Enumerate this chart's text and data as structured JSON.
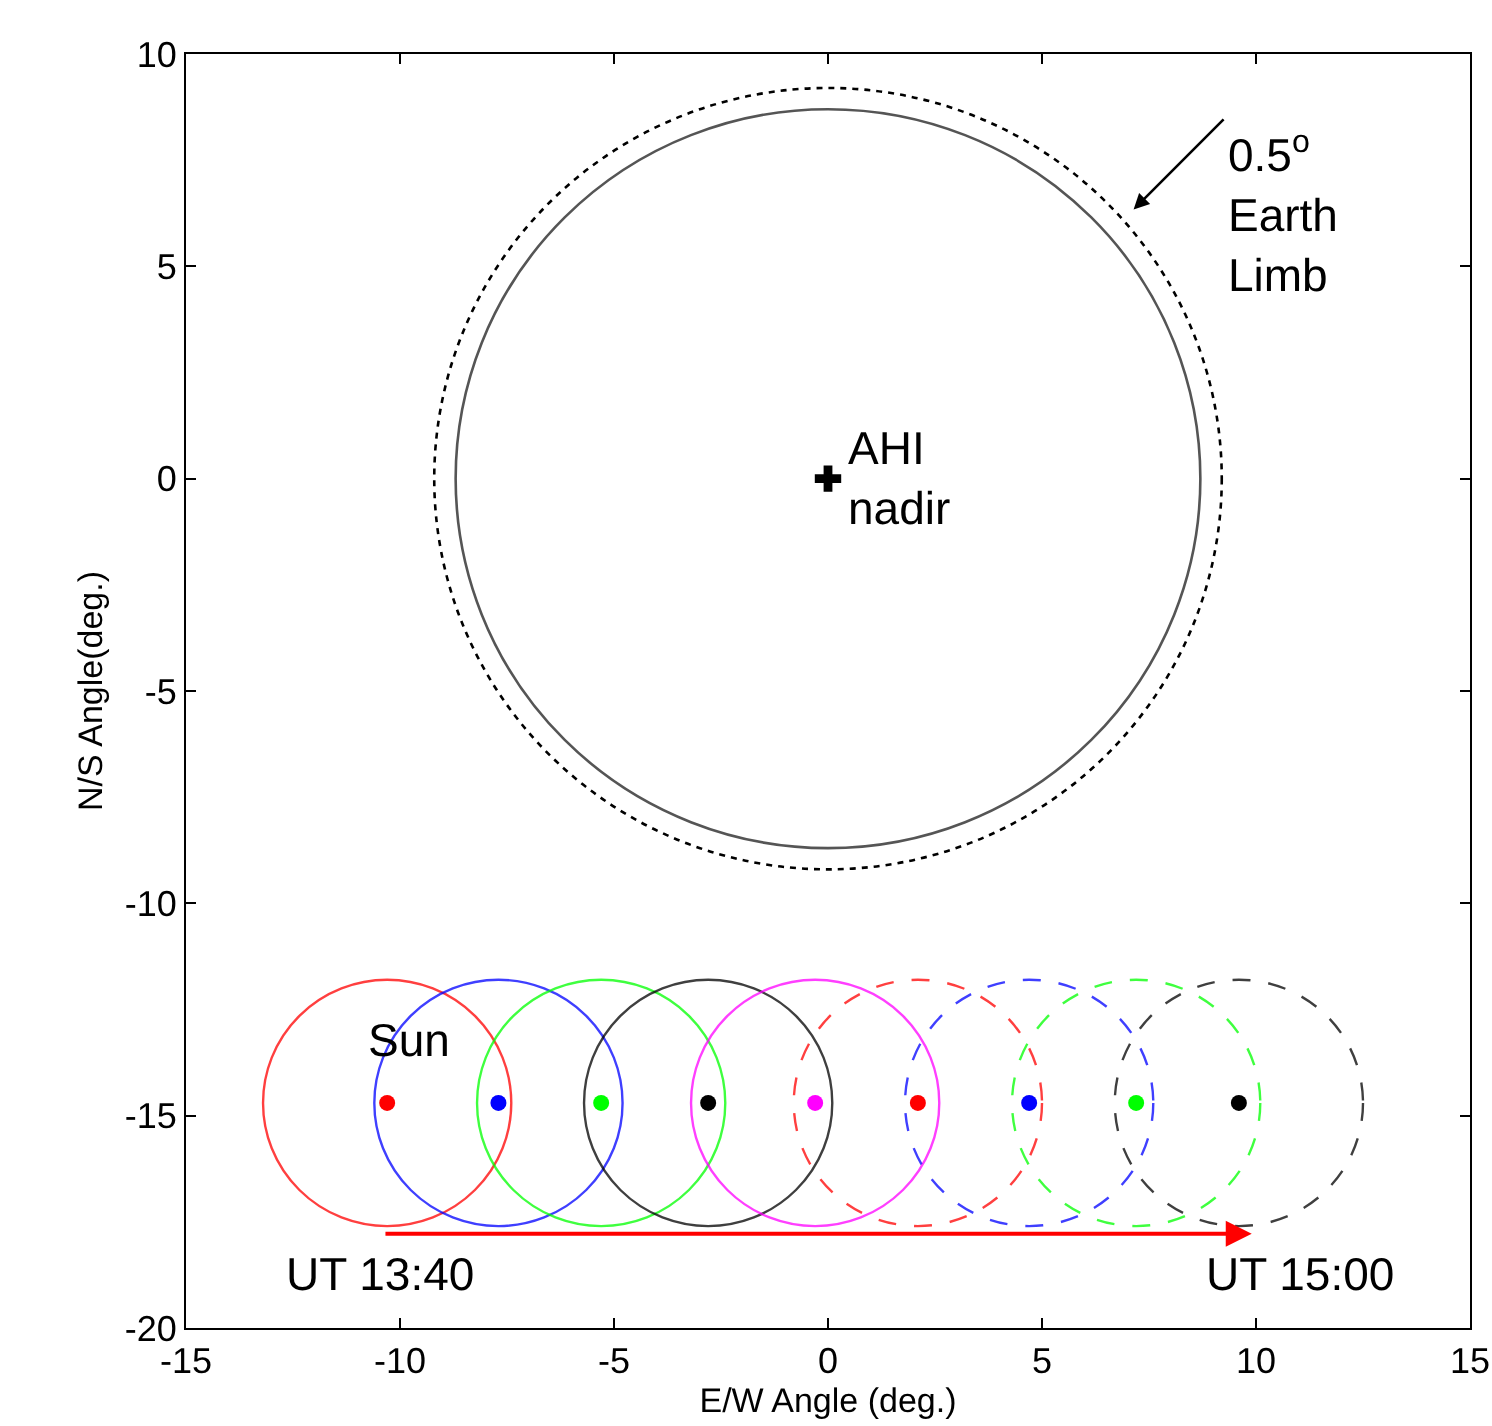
{
  "chart_data": {
    "type": "scatter",
    "xlabel": "E/W Angle (deg.)",
    "ylabel": "N/S Angle(deg.)",
    "xlim": [
      -15,
      15
    ],
    "xticks": [
      -15,
      -10,
      -5,
      0,
      5,
      10,
      15
    ],
    "ylim": [
      -20,
      10
    ],
    "yticks": [
      -20,
      -15,
      -10,
      -5,
      0,
      5,
      10
    ],
    "grid": false,
    "series": [
      {
        "marker": "circle",
        "x": [
          -10.3,
          -7.7,
          -5.3,
          -2.8,
          -0.3,
          2.1,
          4.7,
          7.2,
          9.6
        ],
        "values": [
          -14.7,
          -14.7,
          -14.7,
          -14.7,
          -14.7,
          -14.7,
          -14.7,
          -14.7,
          -14.7
        ],
        "colors": [
          "#ff0000",
          "#0000ff",
          "#00ff00",
          "#000000",
          "#ff00ff",
          "#ff0000",
          "#0000ff",
          "#00ff00",
          "#000000"
        ]
      },
      {
        "marker": "cross",
        "color": "#000000",
        "x": [
          0
        ],
        "values": [
          0
        ]
      }
    ],
    "annotations": [
      "0.5$^{o}$\nEarth\nLimb",
      {
        "text": "AHI\nnadir",
        "x": 0,
        "y": 0
      },
      {
        "text": "Sun",
        "x": -10.3,
        "y": -14.7
      },
      "UT 13:40",
      "UT 15:00"
    ]
  }
}
